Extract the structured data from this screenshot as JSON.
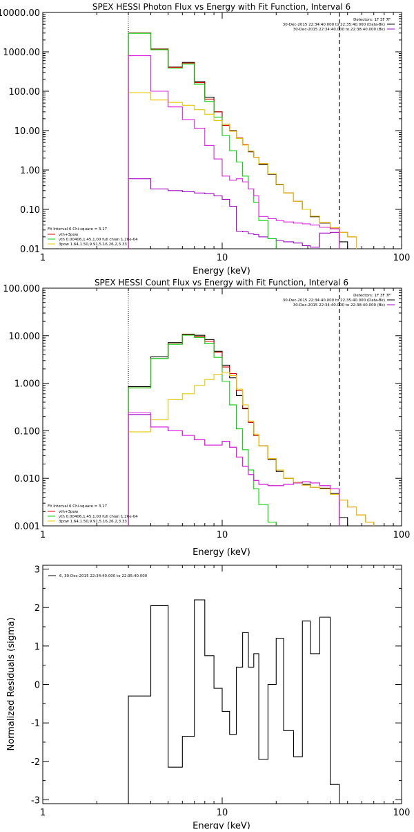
{
  "colors": {
    "data": "#000000",
    "bkg": "#a000c8",
    "fit_total": "#e00000",
    "vth": "#00d000",
    "bpow": "#e6c800",
    "background_segment": "#e020e0"
  },
  "chart_data": [
    {
      "type": "line",
      "title": "SPEX HESSI Photon Flux vs Energy with Fit Function, Interval 6",
      "xlabel": "Energy (keV)",
      "ylabel": "",
      "xscale": "log",
      "yscale": "log",
      "xlim": [
        1,
        100
      ],
      "ylim": [
        0.01,
        10000
      ],
      "xticks": [
        1,
        10,
        100
      ],
      "yticks": [
        "0.01",
        "0.10",
        "1.00",
        "10.00",
        "100.00",
        "1000.00",
        "10000.00"
      ],
      "grid": false,
      "detectors": "Detectors: 1F 3F 7F",
      "time_legend": [
        "30-Dec-2015 22:34:40.000 to 22:35:40.000 (Data-Bk)",
        "30-Dec-2015 22:34:40.000 to 22:38:40.000 (Bk)"
      ],
      "fit_legend": [
        "Fit Interval 6   Chi-square = 3.17",
        "vth+3pow",
        "vth 0.00406,1.45,1.00  full chian 1.26e-04",
        "3pow 1.64,1.50,9.91,5.16,26.2,3.33"
      ],
      "vlines": [
        3,
        45
      ],
      "edges": [
        3,
        4,
        5,
        6,
        7,
        8,
        9,
        10,
        11,
        12,
        13,
        14,
        15,
        16,
        18,
        20,
        22,
        25,
        28,
        31,
        35,
        40,
        45,
        50,
        56
      ],
      "series": [
        {
          "name": "Data-Bk",
          "color": "#000000",
          "values": [
            3000,
            1180,
            410,
            540,
            175,
            70,
            30,
            14.5,
            10,
            6.3,
            4.3,
            2.9,
            2.1,
            1.38,
            0.78,
            0.42,
            0.26,
            0.16,
            0.1,
            0.065,
            0.045,
            0.034,
            0.015
          ]
        },
        {
          "name": "Bk",
          "color": "#a000c8",
          "values": [
            0.6,
            0.33,
            0.3,
            0.28,
            0.26,
            0.25,
            0.22,
            0.18,
            0.12,
            0.028,
            0.027,
            0.024,
            0.023,
            0.02,
            0.018,
            0.016,
            0.015,
            0.014,
            0.012,
            0.011,
            0.025,
            0.026,
            null
          ]
        },
        {
          "name": "vth+3pow",
          "color": "#e00000",
          "values": [
            3000,
            1160,
            405,
            520,
            165,
            63,
            30,
            13.5,
            9.8,
            6.5,
            4.4,
            3,
            2.1,
            1.45,
            0.8,
            0.43,
            0.26,
            0.16,
            0.1,
            0.067,
            0.046,
            0.034,
            0.026,
            0.02
          ]
        },
        {
          "name": "vth",
          "color": "#00d000",
          "values": [
            2950,
            1130,
            385,
            490,
            150,
            55,
            22,
            7.5,
            3.1,
            1.6,
            0.7,
            0.33,
            0.15,
            0.052,
            0.018,
            null,
            null,
            null,
            null,
            null,
            null,
            null,
            null,
            null
          ]
        },
        {
          "name": "3pow",
          "color": "#e6c800",
          "values": [
            92,
            60,
            52,
            44,
            34,
            26,
            18,
            14.5,
            9.6,
            6.3,
            4.3,
            3,
            2.1,
            1.45,
            0.8,
            0.43,
            0.26,
            0.16,
            0.1,
            0.067,
            0.046,
            0.034,
            0.026,
            0.02
          ]
        },
        {
          "name": "background",
          "color": "#e020e0",
          "values": [
            800,
            100,
            40,
            19,
            11.5,
            4.2,
            1.9,
            0.7,
            0.55,
            0.6,
            0.5,
            0.33,
            0.22,
            0.066,
            0.058,
            0.052,
            0.048,
            0.045,
            0.043,
            0.04,
            0.035,
            0.032,
            null,
            null
          ]
        }
      ]
    },
    {
      "type": "line",
      "title": "SPEX HESSI Count Flux vs Energy with Fit Function, Interval 6",
      "xlabel": "Energy (keV)",
      "ylabel": "",
      "xscale": "log",
      "yscale": "log",
      "xlim": [
        1,
        100
      ],
      "ylim": [
        0.001,
        100
      ],
      "xticks": [
        1,
        10,
        100
      ],
      "yticks": [
        "0.001",
        "0.010",
        "0.100",
        "1.000",
        "10.000",
        "100.000"
      ],
      "grid": false,
      "detectors": "Detectors: 1F 3F 7F",
      "time_legend": [
        "30-Dec-2015 22:34:40.000 to 22:35:40.000 (Data-Bk)",
        "30-Dec-2015 22:34:40.000 to 22:38:40.000 (Bk)"
      ],
      "fit_legend": [
        "Fit Interval 6   Chi-square = 3.17",
        "vth+3pow",
        "vth 0.00406,1.45,1.00  full chian 1.26e-04",
        "3pow 1.64,1.50,9.91,5.16,26.2,3.33"
      ],
      "vlines": [
        3,
        45
      ],
      "edges": [
        3,
        4,
        5,
        6,
        7,
        8,
        9,
        10,
        11,
        12,
        13,
        14,
        15,
        16,
        18,
        20,
        22,
        25,
        28,
        31,
        35,
        40,
        45,
        50,
        56,
        63,
        70
      ],
      "series": [
        {
          "name": "Data-Bk",
          "color": "#000000",
          "values": [
            0.85,
            3.6,
            7.2,
            10.8,
            10.2,
            8.3,
            4.7,
            2.4,
            1.3,
            0.55,
            0.29,
            0.15,
            0.08,
            0.048,
            0.025,
            0.014,
            0.01,
            0.008,
            0.0075,
            0.0065,
            0.0062,
            0.0048,
            0.0015,
            null,
            null,
            null
          ]
        },
        {
          "name": "Bk",
          "color": "#a000c8",
          "values": [
            0.22,
            0.12,
            0.1,
            0.08,
            0.065,
            0.05,
            0.05,
            0.06,
            0.045,
            0.028,
            0.018,
            0.012,
            0.009,
            0.0075,
            0.007,
            0.007,
            0.0075,
            0.008,
            0.0085,
            0.008,
            0.007,
            0.006,
            null,
            null,
            null,
            null
          ]
        },
        {
          "name": "vth+3pow",
          "color": "#e00000",
          "values": [
            0.8,
            3.3,
            6.7,
            10.5,
            9.7,
            7.6,
            4.5,
            2.2,
            1.6,
            0.7,
            0.3,
            0.15,
            0.08,
            0.048,
            0.026,
            0.015,
            0.01,
            0.0082,
            0.0072,
            0.0065,
            0.006,
            0.0046,
            0.0035,
            0.0025,
            0.0017,
            0.0012
          ]
        },
        {
          "name": "vth",
          "color": "#00d000",
          "values": [
            0.8,
            3.3,
            6.6,
            10.3,
            9.2,
            6.8,
            3.5,
            1.1,
            0.35,
            0.11,
            0.04,
            0.015,
            0.006,
            0.0028,
            0.0012,
            null,
            null,
            null,
            null,
            null,
            null,
            null,
            null,
            null,
            null,
            null
          ]
        },
        {
          "name": "3pow",
          "color": "#e6c800",
          "values": [
            0.095,
            0.17,
            0.45,
            0.6,
            0.9,
            1.2,
            1.55,
            1.7,
            1.45,
            0.75,
            0.35,
            0.16,
            0.085,
            0.048,
            0.026,
            0.015,
            0.01,
            0.0082,
            0.0072,
            0.0065,
            0.006,
            0.0046,
            0.0035,
            0.0025,
            0.0017,
            0.0012
          ]
        },
        {
          "name": "background",
          "color": "#e020e0",
          "values": [
            0.24,
            0.12,
            0.1,
            0.08,
            0.065,
            0.05,
            0.05,
            0.06,
            0.045,
            0.028,
            0.018,
            0.012,
            0.009,
            0.0075,
            0.007,
            0.007,
            0.0075,
            0.008,
            0.0085,
            0.008,
            0.007,
            0.006,
            null,
            null,
            null,
            null
          ]
        }
      ]
    },
    {
      "type": "line",
      "title": "",
      "xlabel": "Energy (keV)",
      "ylabel": "Normalized Residuals (sigma)",
      "xscale": "log",
      "yscale": "linear",
      "xlim": [
        1,
        100
      ],
      "ylim": [
        -3.1,
        3.1
      ],
      "xticks": [
        1,
        10,
        100
      ],
      "yticks": [
        "3",
        "2",
        "1",
        "0",
        "-1",
        "-2",
        "-3"
      ],
      "grid": false,
      "legend": "6, 30-Dec-2015 22:34:40.000 to 22:35:40.000",
      "edges": [
        3,
        4,
        5,
        6,
        7,
        8,
        9,
        10,
        11,
        12,
        13,
        14,
        15,
        16,
        18,
        20,
        22,
        25,
        28,
        31,
        35,
        40,
        45
      ],
      "series": [
        {
          "name": "residuals",
          "color": "#000000",
          "values": [
            -0.3,
            2.05,
            -2.15,
            -1.35,
            2.2,
            0.75,
            -0.1,
            -0.7,
            -1.3,
            0.45,
            1.35,
            0.45,
            0.8,
            -1.95,
            0.0,
            1.2,
            -1.2,
            -1.88,
            1.65,
            0.8,
            1.75,
            -2.6
          ]
        }
      ]
    }
  ]
}
